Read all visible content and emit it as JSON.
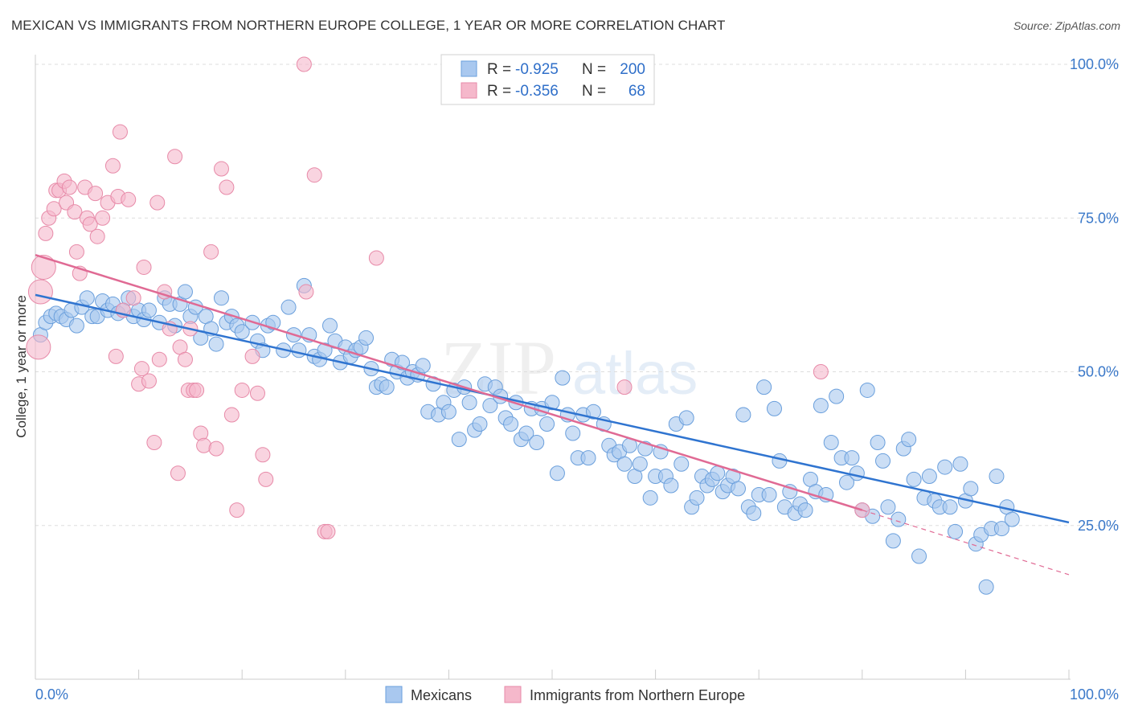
{
  "header": {
    "title": "MEXICAN VS IMMIGRANTS FROM NORTHERN EUROPE COLLEGE, 1 YEAR OR MORE CORRELATION CHART",
    "source": "Source: ZipAtlas.com"
  },
  "watermark": "ZIPatlas",
  "colors": {
    "blue_fill": "#a9c8ef",
    "blue_stroke": "#6a9fdc",
    "blue_line": "#2f74d0",
    "pink_fill": "#f5b8cb",
    "pink_stroke": "#e78aa8",
    "pink_line": "#e06a94",
    "axis_text": "#3a78c9",
    "grid": "#d8d8d8"
  },
  "legend": {
    "rows": [
      {
        "r_label": "R =",
        "r_value": "-0.925",
        "n_label": "N =",
        "n_value": "200"
      },
      {
        "r_label": "R =",
        "r_value": "-0.356",
        "n_label": "N =",
        "n_value": "68"
      }
    ]
  },
  "bottom_legend": [
    "Mexicans",
    "Immigrants from Northern Europe"
  ],
  "chart_data": {
    "type": "scatter",
    "title": "MEXICAN VS IMMIGRANTS FROM NORTHERN EUROPE COLLEGE, 1 YEAR OR MORE CORRELATION CHART",
    "xlabel": "",
    "ylabel": "College, 1 year or more",
    "xlim": [
      0,
      100
    ],
    "ylim": [
      0,
      100
    ],
    "x_tick_labels": [
      "0.0%",
      "100.0%"
    ],
    "y_tick_labels": [
      "25.0%",
      "50.0%",
      "75.0%",
      "100.0%"
    ],
    "y_ticks": [
      25,
      50,
      75,
      100
    ],
    "series": [
      {
        "name": "Mexicans",
        "color": "#a9c8ef",
        "R": -0.925,
        "N": 200,
        "trend": {
          "x": [
            0,
            100
          ],
          "y": [
            62.5,
            25.5
          ],
          "dashed_from": null
        },
        "points": [
          [
            0.5,
            56
          ],
          [
            1,
            58
          ],
          [
            1.5,
            59
          ],
          [
            2,
            59.5
          ],
          [
            2.5,
            59
          ],
          [
            3,
            58.5
          ],
          [
            3.5,
            60
          ],
          [
            4,
            57.5
          ],
          [
            4.5,
            60.5
          ],
          [
            5,
            62
          ],
          [
            5.5,
            59
          ],
          [
            6,
            59
          ],
          [
            6.5,
            61.5
          ],
          [
            7,
            60
          ],
          [
            7.5,
            61
          ],
          [
            8,
            59.5
          ],
          [
            8.5,
            60
          ],
          [
            9,
            62
          ],
          [
            9.5,
            59
          ],
          [
            10,
            60
          ],
          [
            10.5,
            58.5
          ],
          [
            11,
            60
          ],
          [
            12,
            58
          ],
          [
            12.5,
            62
          ],
          [
            13,
            61
          ],
          [
            13.5,
            57.5
          ],
          [
            14,
            61
          ],
          [
            14.5,
            63
          ],
          [
            15,
            59
          ],
          [
            15.5,
            60.5
          ],
          [
            16,
            55.5
          ],
          [
            16.5,
            59
          ],
          [
            17,
            57
          ],
          [
            17.5,
            54.5
          ],
          [
            18,
            62
          ],
          [
            18.5,
            58
          ],
          [
            19,
            59
          ],
          [
            19.5,
            57.5
          ],
          [
            20,
            56.5
          ],
          [
            21,
            58
          ],
          [
            21.5,
            55
          ],
          [
            22,
            53.5
          ],
          [
            22.5,
            57.5
          ],
          [
            23,
            58
          ],
          [
            24,
            53.5
          ],
          [
            24.5,
            60.5
          ],
          [
            25,
            56
          ],
          [
            25.5,
            53.5
          ],
          [
            26,
            64
          ],
          [
            26.5,
            56
          ],
          [
            27,
            52.5
          ],
          [
            27.5,
            52
          ],
          [
            28,
            53.5
          ],
          [
            28.5,
            57.5
          ],
          [
            29,
            55
          ],
          [
            29.5,
            51.5
          ],
          [
            30,
            54
          ],
          [
            30.5,
            52.5
          ],
          [
            31,
            53.5
          ],
          [
            31.5,
            54
          ],
          [
            32,
            55.5
          ],
          [
            32.5,
            50.5
          ],
          [
            33,
            47.5
          ],
          [
            33.5,
            48
          ],
          [
            34,
            47.5
          ],
          [
            34.5,
            52
          ],
          [
            35,
            50
          ],
          [
            35.5,
            51.5
          ],
          [
            36,
            49
          ],
          [
            36.5,
            50
          ],
          [
            37,
            49.5
          ],
          [
            37.5,
            51
          ],
          [
            38,
            43.5
          ],
          [
            38.5,
            48
          ],
          [
            39,
            43
          ],
          [
            39.5,
            45
          ],
          [
            40,
            43.5
          ],
          [
            40.5,
            47
          ],
          [
            41,
            39
          ],
          [
            41.5,
            47.5
          ],
          [
            42,
            45
          ],
          [
            42.5,
            40.5
          ],
          [
            43,
            41.5
          ],
          [
            43.5,
            48
          ],
          [
            44,
            44.5
          ],
          [
            44.5,
            47.5
          ],
          [
            45,
            46
          ],
          [
            45.5,
            42.5
          ],
          [
            46,
            41.5
          ],
          [
            46.5,
            45
          ],
          [
            47,
            39
          ],
          [
            47.5,
            40
          ],
          [
            48,
            44
          ],
          [
            48.5,
            38.5
          ],
          [
            49,
            44
          ],
          [
            49.5,
            41.5
          ],
          [
            50,
            45
          ],
          [
            50.5,
            33.5
          ],
          [
            51,
            49
          ],
          [
            51.5,
            43
          ],
          [
            52,
            40
          ],
          [
            52.5,
            36
          ],
          [
            53,
            43
          ],
          [
            53.5,
            36
          ],
          [
            54,
            43.5
          ],
          [
            55,
            41.5
          ],
          [
            55.5,
            38
          ],
          [
            56,
            36.5
          ],
          [
            56.5,
            37
          ],
          [
            57,
            35
          ],
          [
            57.5,
            38
          ],
          [
            58,
            33
          ],
          [
            58.5,
            35
          ],
          [
            59,
            37.5
          ],
          [
            59.5,
            29.5
          ],
          [
            60,
            33
          ],
          [
            60.5,
            37
          ],
          [
            61,
            33
          ],
          [
            61.5,
            31.5
          ],
          [
            62,
            41.5
          ],
          [
            62.5,
            35
          ],
          [
            63,
            42.5
          ],
          [
            63.5,
            28
          ],
          [
            64,
            29.5
          ],
          [
            64.5,
            33
          ],
          [
            65,
            31.5
          ],
          [
            65.5,
            32.5
          ],
          [
            66,
            33.5
          ],
          [
            66.5,
            30.5
          ],
          [
            67,
            31.5
          ],
          [
            67.5,
            33
          ],
          [
            68,
            31
          ],
          [
            68.5,
            43
          ],
          [
            69,
            28
          ],
          [
            69.5,
            27
          ],
          [
            70,
            30
          ],
          [
            70.5,
            47.5
          ],
          [
            71,
            30
          ],
          [
            71.5,
            44
          ],
          [
            72,
            35.5
          ],
          [
            72.5,
            28
          ],
          [
            73,
            30.5
          ],
          [
            73.5,
            27
          ],
          [
            74,
            28.5
          ],
          [
            74.5,
            27.5
          ],
          [
            75,
            32.5
          ],
          [
            75.5,
            30.5
          ],
          [
            76,
            44.5
          ],
          [
            76.5,
            30
          ],
          [
            77,
            38.5
          ],
          [
            77.5,
            46
          ],
          [
            78,
            36
          ],
          [
            78.5,
            32
          ],
          [
            79,
            36
          ],
          [
            79.5,
            33.5
          ],
          [
            80,
            27.5
          ],
          [
            80.5,
            47
          ],
          [
            81,
            26.5
          ],
          [
            81.5,
            38.5
          ],
          [
            82,
            35.5
          ],
          [
            82.5,
            28
          ],
          [
            83,
            22.5
          ],
          [
            83.5,
            26
          ],
          [
            84,
            37.5
          ],
          [
            84.5,
            39
          ],
          [
            85,
            32.5
          ],
          [
            85.5,
            20
          ],
          [
            86,
            29.5
          ],
          [
            86.5,
            33
          ],
          [
            87,
            29
          ],
          [
            87.5,
            28
          ],
          [
            88,
            34.5
          ],
          [
            88.5,
            28
          ],
          [
            89,
            24
          ],
          [
            89.5,
            35
          ],
          [
            90,
            29
          ],
          [
            90.5,
            31
          ],
          [
            91,
            22
          ],
          [
            91.5,
            23.5
          ],
          [
            92,
            15
          ],
          [
            92.5,
            24.5
          ],
          [
            93,
            33
          ],
          [
            93.5,
            24.5
          ],
          [
            94,
            28
          ],
          [
            94.5,
            26
          ]
        ]
      },
      {
        "name": "Immigrants from Northern Europe",
        "color": "#f5b8cb",
        "R": -0.356,
        "N": 68,
        "trend": {
          "x": [
            0,
            80,
            100
          ],
          "y": [
            69,
            27.5,
            17
          ],
          "dashed_from": 80
        },
        "points": [
          [
            0.3,
            54
          ],
          [
            0.5,
            63
          ],
          [
            0.8,
            67
          ],
          [
            1,
            72.5
          ],
          [
            1.3,
            75
          ],
          [
            1.8,
            76.5
          ],
          [
            2,
            79.5
          ],
          [
            2.3,
            79.5
          ],
          [
            2.8,
            81
          ],
          [
            3,
            77.5
          ],
          [
            3.3,
            80
          ],
          [
            3.8,
            76
          ],
          [
            4,
            69.5
          ],
          [
            4.3,
            66
          ],
          [
            4.8,
            80
          ],
          [
            5,
            75
          ],
          [
            5.3,
            74
          ],
          [
            5.8,
            79
          ],
          [
            6,
            72
          ],
          [
            6.5,
            75
          ],
          [
            7,
            77.5
          ],
          [
            7.5,
            83.5
          ],
          [
            7.8,
            52.5
          ],
          [
            8,
            78.5
          ],
          [
            8.2,
            89
          ],
          [
            8.5,
            60
          ],
          [
            9,
            78
          ],
          [
            9.5,
            62
          ],
          [
            10,
            48
          ],
          [
            10.3,
            50.5
          ],
          [
            10.5,
            67
          ],
          [
            11,
            48.5
          ],
          [
            11.5,
            38.5
          ],
          [
            11.8,
            77.5
          ],
          [
            12,
            52
          ],
          [
            12.5,
            63
          ],
          [
            13,
            57
          ],
          [
            13.5,
            85
          ],
          [
            13.8,
            33.5
          ],
          [
            14,
            54
          ],
          [
            14.5,
            52
          ],
          [
            14.8,
            47
          ],
          [
            15,
            57
          ],
          [
            15.3,
            47
          ],
          [
            15.6,
            47
          ],
          [
            16,
            40
          ],
          [
            16.3,
            38
          ],
          [
            17,
            69.5
          ],
          [
            17.5,
            37.5
          ],
          [
            18,
            83
          ],
          [
            18.5,
            80
          ],
          [
            19,
            43
          ],
          [
            19.5,
            27.5
          ],
          [
            20,
            47
          ],
          [
            21,
            52.5
          ],
          [
            21.5,
            46.5
          ],
          [
            22,
            36.5
          ],
          [
            22.3,
            32.5
          ],
          [
            26,
            100
          ],
          [
            26.2,
            63
          ],
          [
            27,
            82
          ],
          [
            28,
            24
          ],
          [
            28.3,
            24
          ],
          [
            33,
            68.5
          ],
          [
            57,
            47.5
          ],
          [
            76,
            50
          ],
          [
            80,
            27.5
          ]
        ]
      }
    ]
  }
}
